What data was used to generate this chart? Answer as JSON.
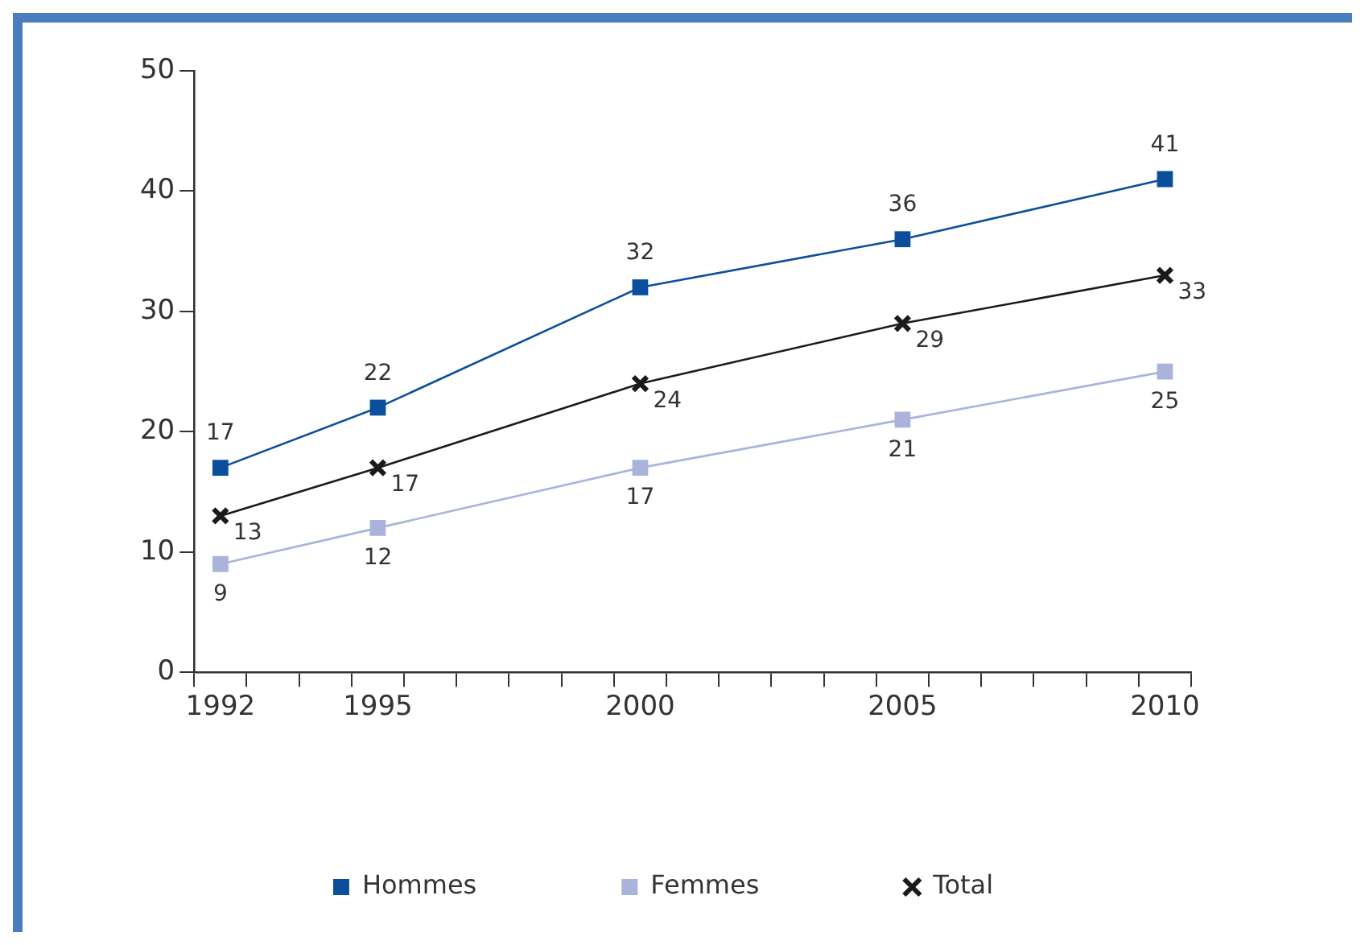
{
  "chart_data": {
    "type": "line",
    "x": [
      1992,
      1995,
      2000,
      2005,
      2010
    ],
    "series": [
      {
        "name": "Hommes",
        "color": "#0b4f9c",
        "values": [
          17,
          22,
          32,
          36,
          41
        ],
        "marker": "square"
      },
      {
        "name": "Femmes",
        "color": "#a9b3dc",
        "values": [
          9,
          12,
          17,
          21,
          25
        ],
        "marker": "square"
      },
      {
        "name": "Total",
        "color": "#1a1a1a",
        "values": [
          13,
          17,
          24,
          29,
          33
        ],
        "marker": "cross"
      }
    ],
    "xlim": [
      1991.5,
      2010.5
    ],
    "xticks": [
      {
        "value": 1991.5,
        "label": null
      },
      1992,
      {
        "value": 1992.5,
        "label": null
      },
      {
        "value": 1993.5,
        "label": null
      },
      {
        "value": 1994.5,
        "label": null
      },
      1995,
      {
        "value": 1995.5,
        "label": null
      },
      {
        "value": 1996.5,
        "label": null
      },
      {
        "value": 1997.5,
        "label": null
      },
      {
        "value": 1998.5,
        "label": null
      },
      {
        "value": 1999.5,
        "label": null
      },
      2000,
      {
        "value": 2000.5,
        "label": null
      },
      {
        "value": 2001.5,
        "label": null
      },
      {
        "value": 2002.5,
        "label": null
      },
      {
        "value": 2003.5,
        "label": null
      },
      {
        "value": 2004.5,
        "label": null
      },
      2005,
      {
        "value": 2005.5,
        "label": null
      },
      {
        "value": 2006.5,
        "label": null
      },
      {
        "value": 2007.5,
        "label": null
      },
      {
        "value": 2008.5,
        "label": null
      },
      {
        "value": 2009.5,
        "label": null
      },
      2010,
      {
        "value": 2010.5,
        "label": null
      }
    ],
    "ylim": [
      0,
      50
    ],
    "yticks": [
      0,
      10,
      20,
      30,
      40,
      50
    ],
    "grid": false,
    "legend": "bottom",
    "data_labels": true
  }
}
